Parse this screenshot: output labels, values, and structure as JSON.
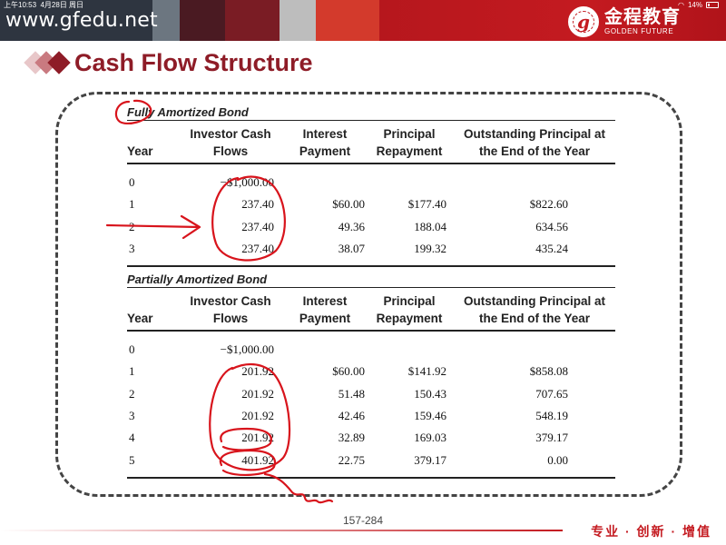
{
  "status_bar": {
    "time": "上午10:53",
    "date": "4月28日 周日",
    "battery": "14%"
  },
  "header": {
    "site_url": "www.gfedu.net",
    "logo_mark": "g",
    "logo_cn": "金程教育",
    "logo_en": "GOLDEN FUTURE"
  },
  "slide_title": "Cash Flow Structure",
  "columns": [
    "Year",
    "Investor Cash Flows",
    "Interest Payment",
    "Principal Repayment",
    "Outstanding Principal at the End of the Year"
  ],
  "tables": [
    {
      "title": "Fully Amortized Bond",
      "rows": [
        {
          "year": "0",
          "cash_flow": "−$1,000.00",
          "interest": "",
          "principal": "",
          "outstanding": ""
        },
        {
          "year": "1",
          "cash_flow": "237.40",
          "interest": "$60.00",
          "principal": "$177.40",
          "outstanding": "$822.60"
        },
        {
          "year": "2",
          "cash_flow": "237.40",
          "interest": "49.36",
          "principal": "188.04",
          "outstanding": "634.56"
        },
        {
          "year": "3",
          "cash_flow": "237.40",
          "interest": "38.07",
          "principal": "199.32",
          "outstanding": "435.24"
        }
      ]
    },
    {
      "title": "Partially Amortized Bond",
      "rows": [
        {
          "year": "0",
          "cash_flow": "−$1,000.00",
          "interest": "",
          "principal": "",
          "outstanding": ""
        },
        {
          "year": "1",
          "cash_flow": "201.92",
          "interest": "$60.00",
          "principal": "$141.92",
          "outstanding": "$858.08"
        },
        {
          "year": "2",
          "cash_flow": "201.92",
          "interest": "51.48",
          "principal": "150.43",
          "outstanding": "707.65"
        },
        {
          "year": "3",
          "cash_flow": "201.92",
          "interest": "42.46",
          "principal": "159.46",
          "outstanding": "548.19"
        },
        {
          "year": "4",
          "cash_flow": "201.92",
          "interest": "32.89",
          "principal": "169.03",
          "outstanding": "379.17"
        },
        {
          "year": "5",
          "cash_flow": "401.92",
          "interest": "22.75",
          "principal": "379.17",
          "outstanding": "0.00"
        }
      ]
    }
  ],
  "page_number": "157-284",
  "slogan": "专业 · 创新 · 增值",
  "colors": {
    "brand_red": "#c41a20",
    "title_red": "#8e1c27",
    "annotation_red": "#d8141c"
  }
}
